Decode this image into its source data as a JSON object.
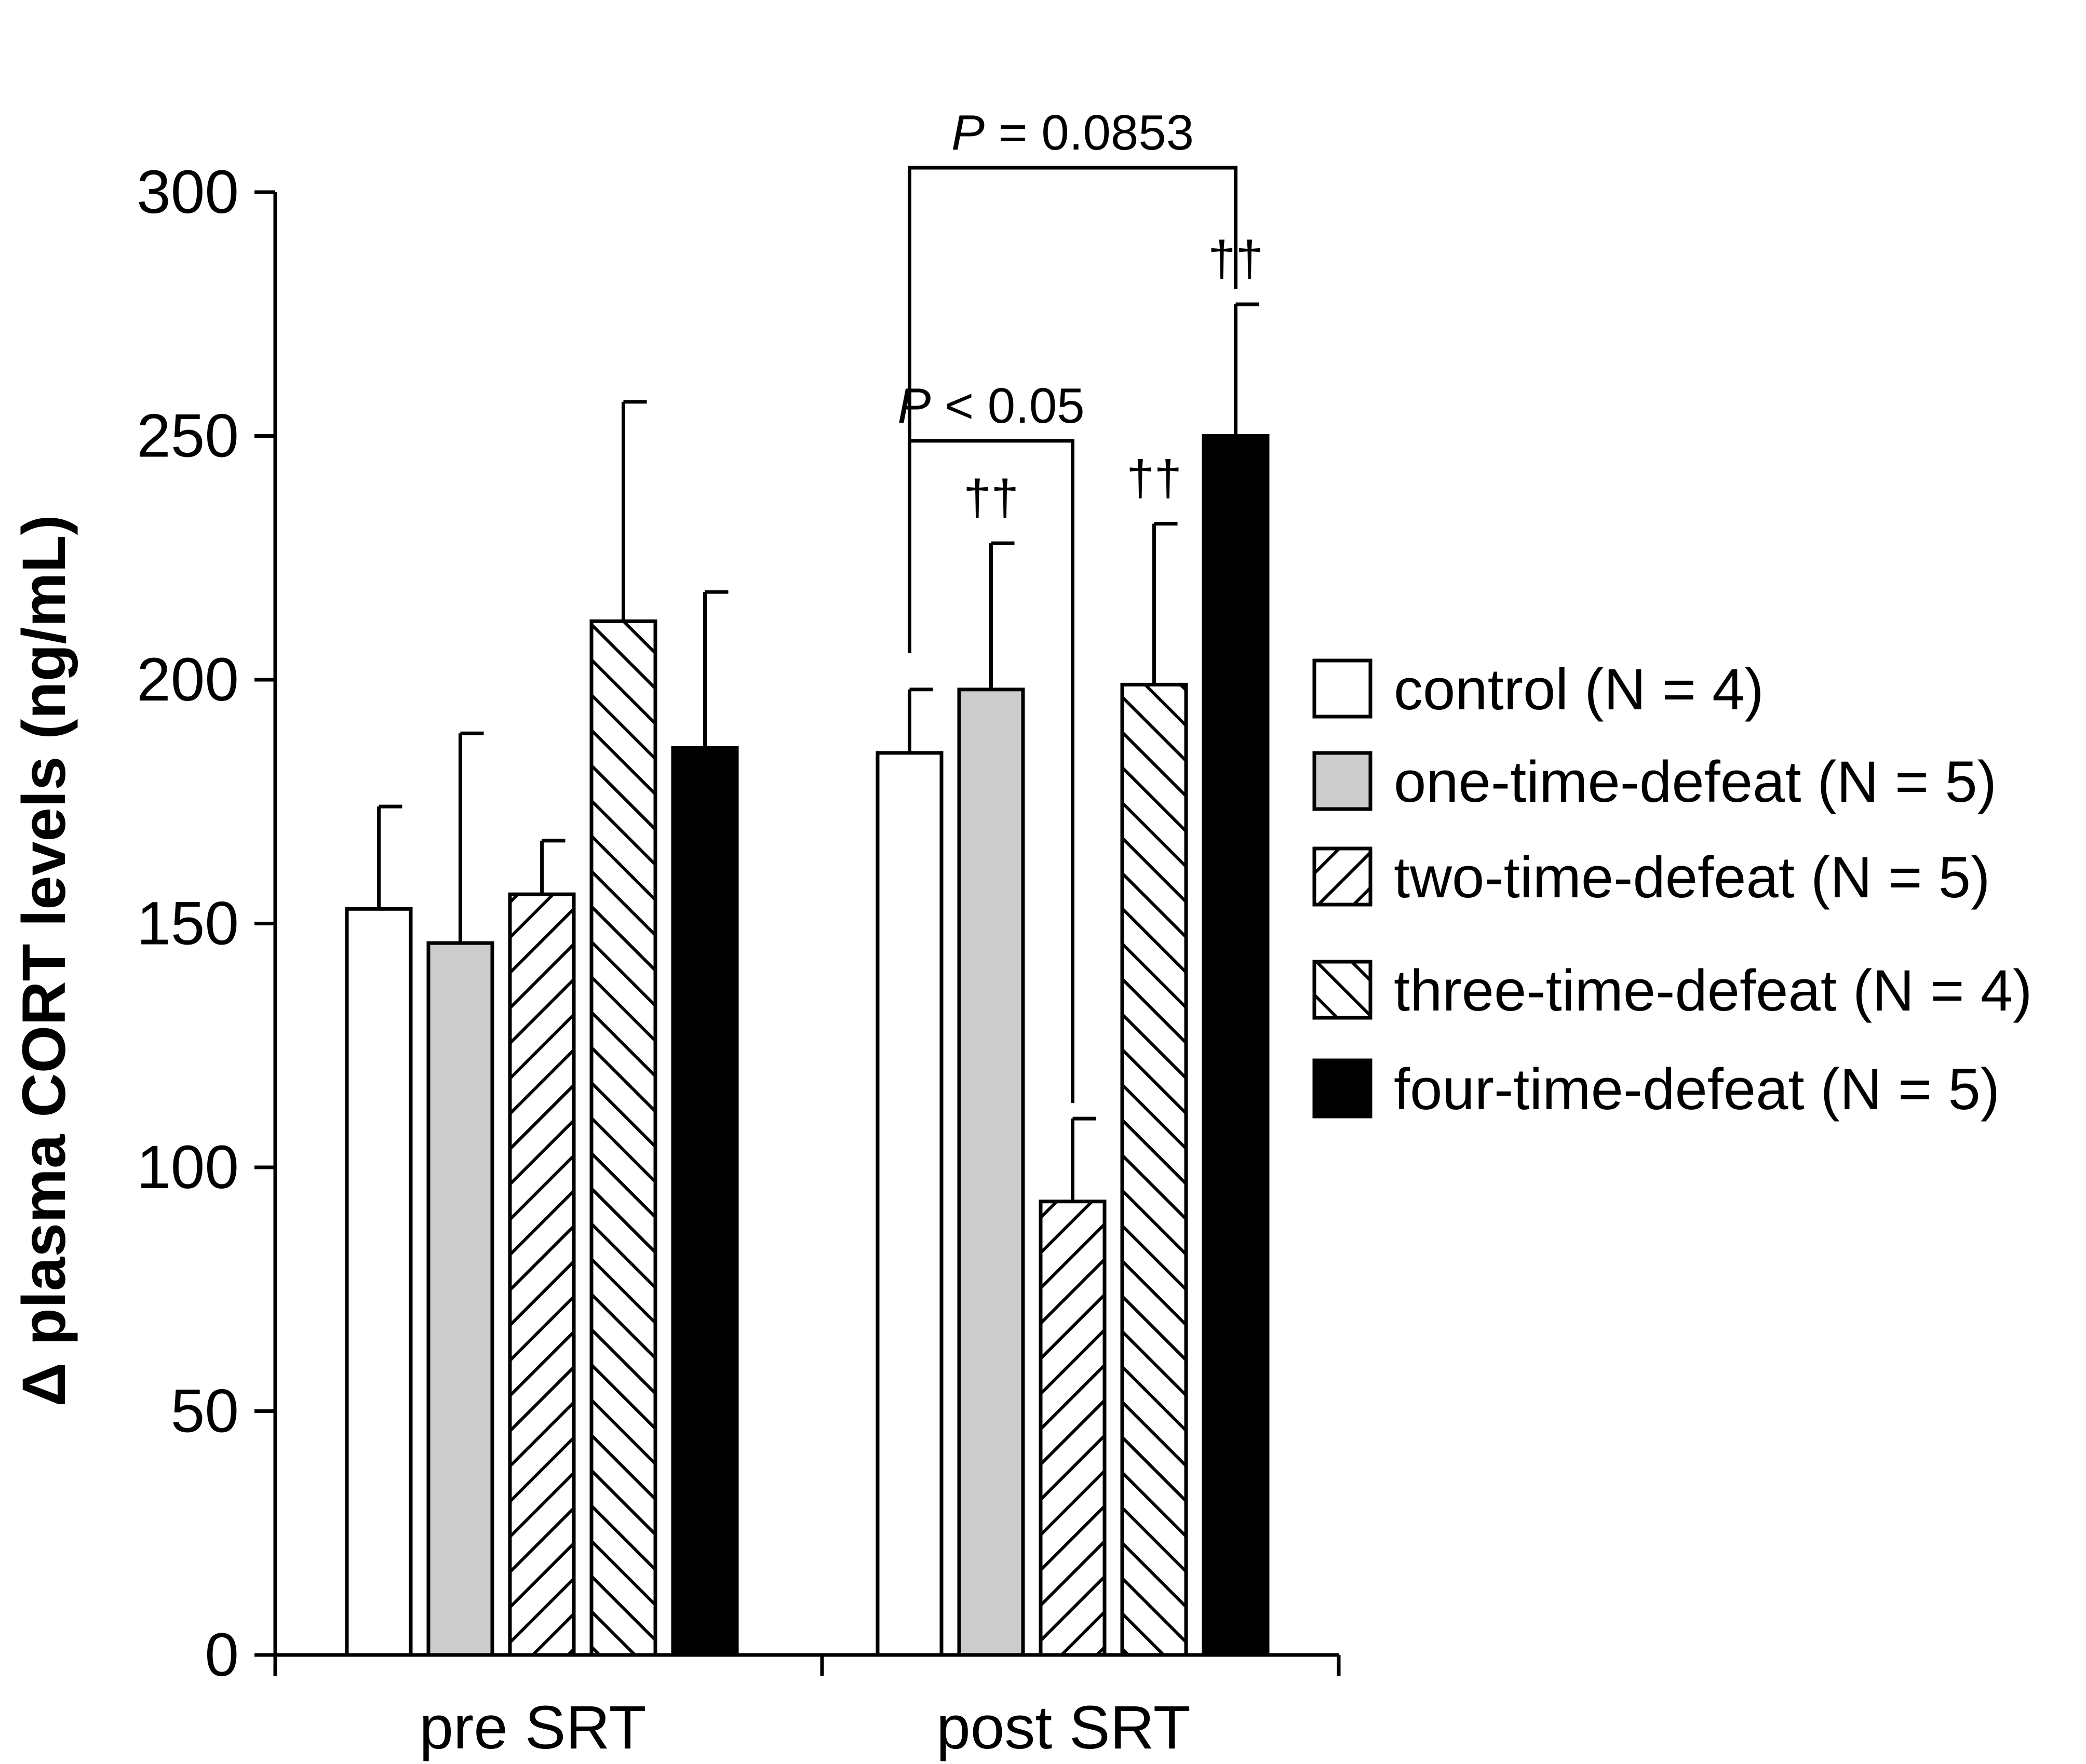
{
  "chart_data": {
    "type": "bar",
    "ylabel": "Δ plasma CORT levels (ng/mL)",
    "xlabel": "",
    "ylim": [
      0,
      300
    ],
    "yticks": [
      0,
      50,
      100,
      150,
      200,
      250,
      300
    ],
    "grid": false,
    "legend_position": "right",
    "categories": [
      "pre SRT",
      "post SRT"
    ],
    "series": [
      {
        "name": "control (N = 4)",
        "pattern": "open",
        "values": [
          153,
          185
        ],
        "errors": [
          21,
          13
        ]
      },
      {
        "name": "one-time-defeat (N = 5)",
        "pattern": "gray",
        "values": [
          146,
          198
        ],
        "errors": [
          43,
          30
        ]
      },
      {
        "name": "two-time-defeat (N = 5)",
        "pattern": "back-hatch",
        "values": [
          156,
          93
        ],
        "errors": [
          11,
          17
        ]
      },
      {
        "name": "three-time-defeat (N = 4)",
        "pattern": "forward-hatch",
        "values": [
          212,
          199
        ],
        "errors": [
          45,
          33
        ]
      },
      {
        "name": "four-time-defeat (N = 5)",
        "pattern": "solid",
        "values": [
          186,
          250
        ],
        "errors": [
          32,
          27
        ]
      }
    ],
    "daggers": [
      {
        "category": 1,
        "series": 1,
        "label": "††"
      },
      {
        "category": 1,
        "series": 3,
        "label": "††"
      },
      {
        "category": 1,
        "series": 4,
        "label": "††"
      }
    ],
    "significance": [
      {
        "category": 1,
        "from_series": 0,
        "to_series": 2,
        "p_label": "P",
        "p_text": " < 0.05",
        "bracket_y": 249
      },
      {
        "category": 1,
        "from_series": 0,
        "to_series": 4,
        "p_label": "P",
        "p_text": " = 0.0853",
        "bracket_y": 305
      }
    ],
    "colors": {
      "gray": "#cccccc",
      "solid": "#000000",
      "open": "#ffffff",
      "line": "#000000"
    }
  }
}
